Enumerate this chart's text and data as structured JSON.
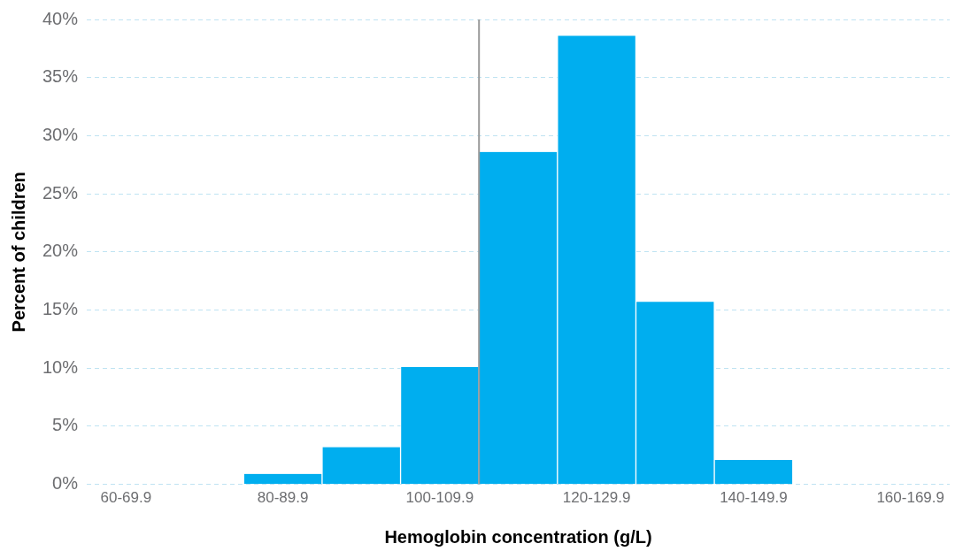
{
  "chart_data": {
    "type": "bar",
    "xlabel": "Hemoglobin concentration (g/L)",
    "ylabel": "Percent of children",
    "categories": [
      "60-69.9",
      null,
      "80-89.9",
      null,
      "100-109.9",
      null,
      "120-129.9",
      null,
      "140-149.9",
      null,
      "160-169.9"
    ],
    "values": [
      0,
      0,
      0.9,
      3.2,
      10.1,
      28.6,
      38.6,
      15.7,
      2.1,
      0,
      0
    ],
    "color": "#00aeef",
    "ylim": [
      0,
      40
    ],
    "yticks": [
      {
        "value": 0,
        "label": "0%"
      },
      {
        "value": 5,
        "label": "5%"
      },
      {
        "value": 10,
        "label": "10%"
      },
      {
        "value": 15,
        "label": "15%"
      },
      {
        "value": 20,
        "label": "20%"
      },
      {
        "value": 25,
        "label": "25%"
      },
      {
        "value": 30,
        "label": "30%"
      },
      {
        "value": 35,
        "label": "35%"
      },
      {
        "value": 40,
        "label": "40%"
      }
    ],
    "ref_lines": [
      {
        "axis": "x",
        "value": "100-109.9",
        "color": "#999999"
      }
    ],
    "grid": "y",
    "legend": false
  }
}
